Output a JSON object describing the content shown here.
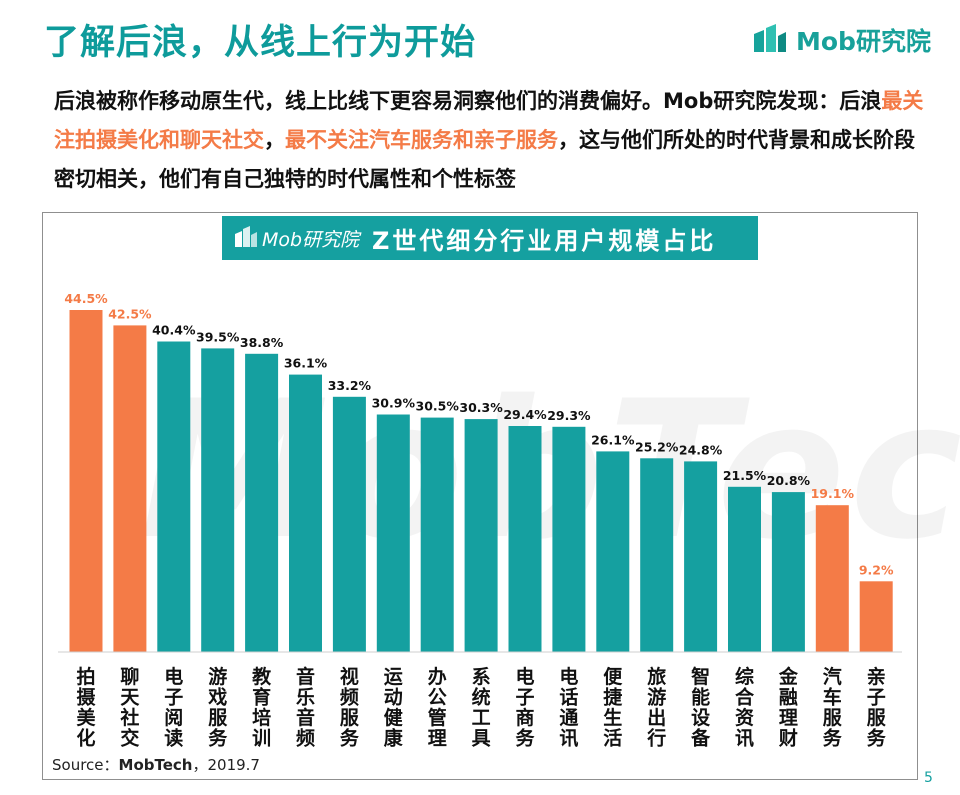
{
  "title": "了解后浪，从线上行为开始",
  "brand": "Mob研究院",
  "intro": {
    "part1": "后浪被称作移动原生代，线上比线下更容易洞察他们的消费偏好。Mob研究院发现：后浪",
    "highlight1": "最关注拍摄美化和聊天社交",
    "part2": "，",
    "highlight2": "最不关注汽车服务和亲子服务",
    "part3": "，这与他们所处的时代背景和成长阶段密切相关，他们有自己独特的时代属性和个性标签"
  },
  "chart_header": {
    "brand": "Mob研究院",
    "title": "Z世代细分行业用户规模占比"
  },
  "watermark": "MobTech",
  "chart_data": {
    "type": "bar",
    "title": "Z世代细分行业用户规模占比",
    "categories": [
      "拍摄美化",
      "聊天社交",
      "电子阅读",
      "游戏服务",
      "教育培训",
      "音乐音频",
      "视频服务",
      "运动健康",
      "办公管理",
      "系统工具",
      "电子商务",
      "电话通讯",
      "便捷生活",
      "旅游出行",
      "智能设备",
      "综合资讯",
      "金融理财",
      "汽车服务",
      "亲子服务"
    ],
    "values": [
      44.5,
      42.5,
      40.4,
      39.5,
      38.8,
      36.1,
      33.2,
      30.9,
      30.5,
      30.3,
      29.4,
      29.3,
      26.1,
      25.2,
      24.8,
      21.5,
      20.8,
      19.1,
      9.2
    ],
    "value_labels": [
      "44.5%",
      "42.5%",
      "40.4%",
      "39.5%",
      "38.8%",
      "36.1%",
      "33.2%",
      "30.9%",
      "30.5%",
      "30.3%",
      "29.4%",
      "29.3%",
      "26.1%",
      "25.2%",
      "24.8%",
      "21.5%",
      "20.8%",
      "19.1%",
      "9.2%"
    ],
    "highlighted": [
      true,
      true,
      false,
      false,
      false,
      false,
      false,
      false,
      false,
      false,
      false,
      false,
      false,
      false,
      false,
      false,
      false,
      true,
      true
    ],
    "ylim": [
      0,
      44.5
    ],
    "grid": false,
    "colors": {
      "normal": "#15a0a0",
      "highlight": "#f47b47",
      "highlight_label": "#f47b47",
      "normal_label": "#111111"
    }
  },
  "source": {
    "prefix": "Source：",
    "name": "MobTech",
    "suffix": "，2019.7"
  },
  "page_number": "5"
}
